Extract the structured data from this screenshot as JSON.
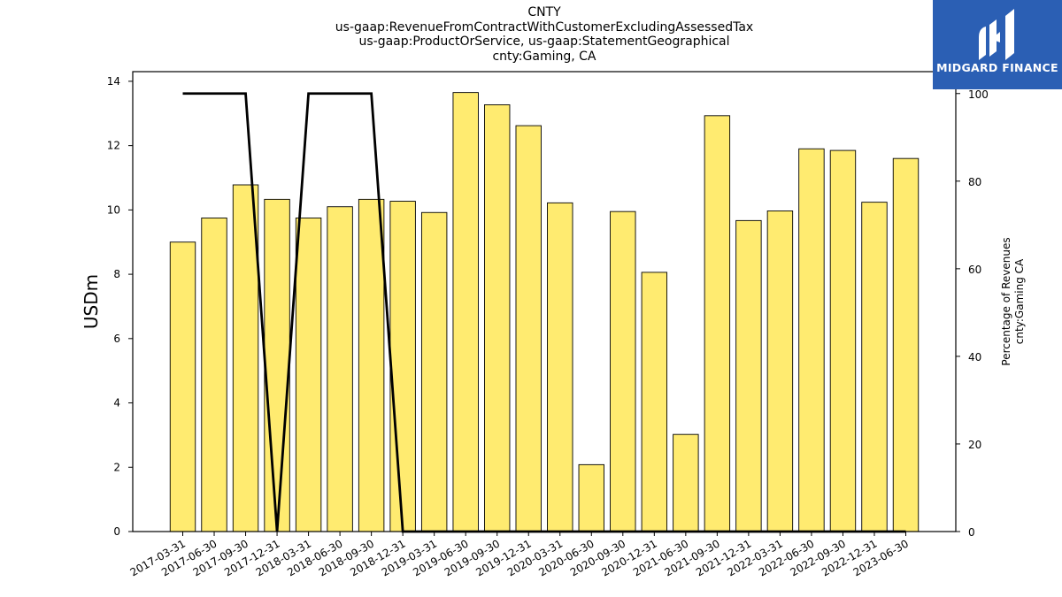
{
  "chart_data": {
    "type": "bar",
    "title_lines": [
      "CNTY",
      "us-gaap:RevenueFromContractWithCustomerExcludingAssessedTax",
      "us-gaap:ProductOrService, us-gaap:StatementGeographical",
      "cnty:Gaming, CA"
    ],
    "categories": [
      "2017-03-31",
      "2017-06-30",
      "2017-09-30",
      "2017-12-31",
      "2018-03-31",
      "2018-06-30",
      "2018-09-30",
      "2018-12-31",
      "2019-03-31",
      "2019-06-30",
      "2019-09-30",
      "2019-12-31",
      "2020-03-31",
      "2020-06-30",
      "2020-09-30",
      "2020-12-31",
      "2021-06-30",
      "2021-09-30",
      "2021-12-31",
      "2022-03-31",
      "2022-06-30",
      "2022-09-30",
      "2022-12-31",
      "2023-06-30"
    ],
    "series": [
      {
        "axis": "left",
        "type": "bar",
        "color": "#ffeb70",
        "values": [
          9.0,
          9.75,
          10.78,
          10.33,
          9.75,
          10.1,
          10.33,
          10.27,
          9.92,
          13.65,
          13.27,
          12.62,
          10.22,
          2.08,
          9.95,
          8.06,
          3.02,
          12.93,
          9.67,
          9.97,
          11.9,
          11.85,
          10.24,
          11.6
        ]
      },
      {
        "axis": "right",
        "type": "line",
        "color": "#000000",
        "values": [
          100,
          100,
          100,
          0,
          100,
          100,
          100,
          0,
          0,
          0,
          0,
          0,
          0,
          0,
          0,
          0,
          0,
          0,
          0,
          0,
          0,
          0,
          0,
          0
        ]
      }
    ],
    "ylabel": "USDm",
    "ylim": [
      0,
      14.3
    ],
    "yticks": [
      0,
      2,
      4,
      6,
      8,
      10,
      12,
      14
    ],
    "y2label_lines": [
      "Percentage of Revenues",
      "cnty:Gaming CA"
    ],
    "y2lim": [
      0,
      105
    ],
    "y2ticks": [
      0,
      20,
      40,
      60,
      80,
      100
    ],
    "grid": false,
    "legend": "none"
  },
  "logo": {
    "text": "MIDGARD FINANCE",
    "bg_color": "#2b5fb4",
    "icon": "midgard-logo-icon"
  }
}
